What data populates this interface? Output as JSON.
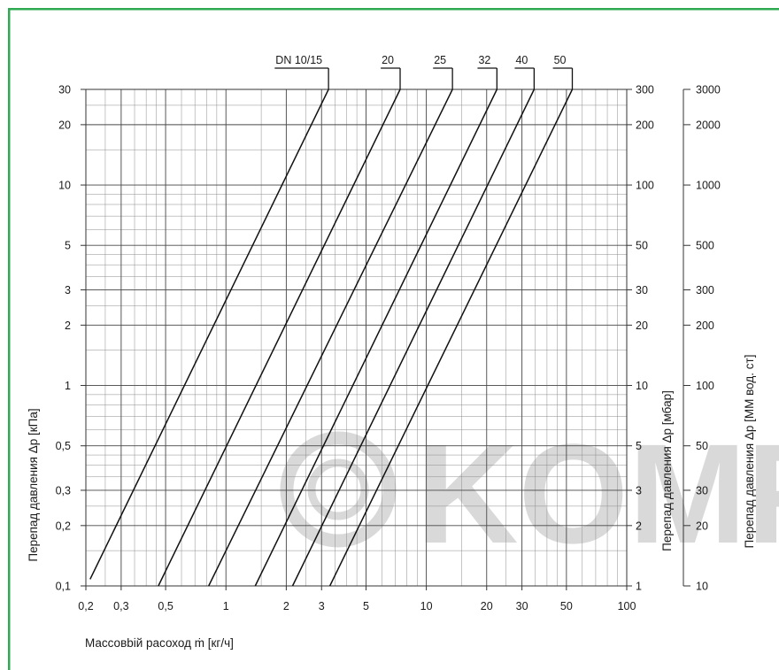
{
  "chart_data": {
    "type": "line",
    "x_scale": "log",
    "y_scale": "log",
    "xlim": [
      0.2,
      100
    ],
    "ylim": [
      0.1,
      30
    ],
    "grid": true,
    "x_ticks": [
      0.2,
      0.3,
      0.5,
      1,
      2,
      3,
      5,
      10,
      20,
      30,
      50,
      100
    ],
    "x_tick_labels": [
      "0,2",
      "0,3",
      "0,5",
      "1",
      "2",
      "3",
      "5",
      "10",
      "20",
      "30",
      "50",
      "100"
    ],
    "y_ticks_left": [
      0.1,
      0.2,
      0.3,
      0.5,
      1,
      2,
      3,
      5,
      10,
      20,
      30
    ],
    "y_tick_labels_left": [
      "0,1",
      "0,2",
      "0,3",
      "0,5",
      "1",
      "2",
      "3",
      "5",
      "10",
      "20",
      "30"
    ],
    "y_tick_labels_mbar": [
      "1",
      "2",
      "3",
      "5",
      "10",
      "20",
      "30",
      "50",
      "100",
      "200",
      "300"
    ],
    "y_tick_labels_mm": [
      "10",
      "20",
      "30",
      "50",
      "100",
      "200",
      "300",
      "500",
      "1000",
      "2000",
      "3000"
    ],
    "xlabel": "Массовbій расоход ṁ [кг/ч]",
    "ylabel_left": "Перепад давления Δp [кПа]",
    "ylabel_right1": "Перепад давления Δp [мбар]",
    "ylabel_right2": "Перепад давления Δp [ММ вод. ст]",
    "series": [
      {
        "name": "DN 10/15",
        "x": [
          0.21,
          3.25
        ],
        "y": [
          0.108,
          30
        ]
      },
      {
        "name": "20",
        "x": [
          0.46,
          7.4
        ],
        "y": [
          0.1,
          30
        ]
      },
      {
        "name": "25",
        "x": [
          0.82,
          13.5
        ],
        "y": [
          0.1,
          30
        ]
      },
      {
        "name": "32",
        "x": [
          1.4,
          22.5
        ],
        "y": [
          0.1,
          30
        ]
      },
      {
        "name": "40",
        "x": [
          2.15,
          34.5
        ],
        "y": [
          0.1,
          30
        ]
      },
      {
        "name": "50",
        "x": [
          3.3,
          53.5
        ],
        "y": [
          0.1,
          30
        ]
      }
    ]
  },
  "watermark": {
    "text": "KOMF",
    "color": "#d9d9d9"
  },
  "colors": {
    "frame": "#2faa52",
    "grid": "#8c8c8c",
    "line": "#111111"
  }
}
